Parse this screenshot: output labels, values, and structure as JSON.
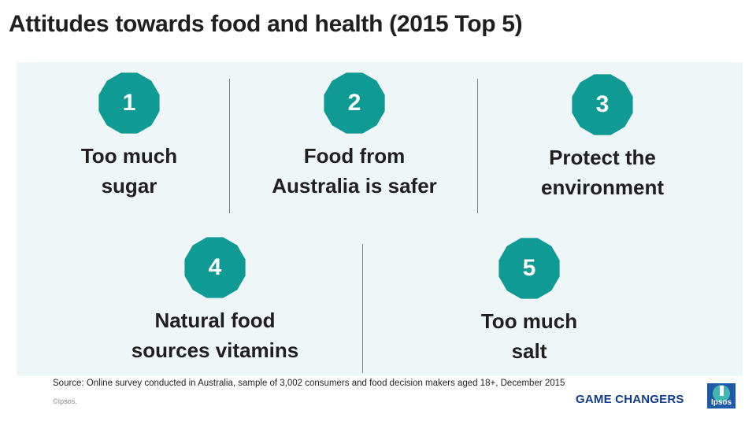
{
  "title": "Attitudes towards food and health (2015 Top 5)",
  "badge_color": "#0f9a94",
  "items": [
    {
      "number": "1",
      "line1": "Too much",
      "line2": "sugar"
    },
    {
      "number": "2",
      "line1": "Food from",
      "line2": "Australia is safer"
    },
    {
      "number": "3",
      "line1": "Protect the",
      "line2": "environment"
    },
    {
      "number": "4",
      "line1": "Natural food",
      "line2": "sources vitamins"
    },
    {
      "number": "5",
      "line1": "Too much",
      "line2": "salt"
    }
  ],
  "source": "Source: Online survey conducted in Australia, sample of 3,002 consumers and food decision makers aged 18+, December 2015",
  "copyright": "©Ipsos.",
  "tagline": "GAME CHANGERS",
  "logo": {
    "text": "Ipsos",
    "icon": "ipsos-logo-icon"
  }
}
